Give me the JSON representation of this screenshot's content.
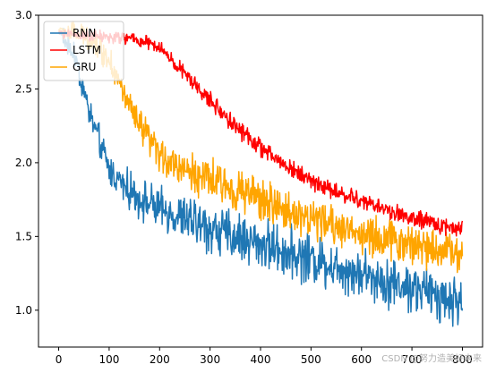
{
  "chart_data": {
    "type": "line",
    "title": "",
    "xlabel": "",
    "ylabel": "",
    "xlim": [
      -40,
      840
    ],
    "ylim": [
      0.75,
      3.0
    ],
    "x_ticks": [
      0,
      100,
      200,
      300,
      400,
      500,
      600,
      700,
      800
    ],
    "y_ticks": [
      1.0,
      1.5,
      2.0,
      2.5,
      3.0
    ],
    "x_tick_labels": [
      "0",
      "100",
      "200",
      "300",
      "400",
      "500",
      "600",
      "700",
      "800"
    ],
    "y_tick_labels": [
      "1.0",
      "1.5",
      "2.0",
      "2.5",
      "3.0"
    ],
    "grid": false,
    "legend_position": "upper-left",
    "series": [
      {
        "name": "RNN",
        "color": "#1f77b4",
        "trend_x": [
          0,
          30,
          60,
          100,
          150,
          200,
          250,
          300,
          350,
          400,
          450,
          500,
          550,
          600,
          650,
          700,
          750,
          800
        ],
        "trend_y": [
          2.88,
          2.75,
          2.35,
          1.95,
          1.78,
          1.68,
          1.62,
          1.55,
          1.5,
          1.45,
          1.4,
          1.35,
          1.3,
          1.25,
          1.2,
          1.15,
          1.1,
          1.05
        ],
        "noise_amplitude": 0.17
      },
      {
        "name": "LSTM",
        "color": "#ff0000",
        "trend_x": [
          0,
          100,
          150,
          200,
          250,
          300,
          350,
          400,
          450,
          500,
          550,
          600,
          650,
          700,
          750,
          800
        ],
        "trend_y": [
          2.88,
          2.85,
          2.84,
          2.78,
          2.6,
          2.42,
          2.25,
          2.1,
          1.98,
          1.88,
          1.8,
          1.74,
          1.68,
          1.62,
          1.58,
          1.55
        ],
        "noise_amplitude": 0.06
      },
      {
        "name": "GRU",
        "color": "#ffa500",
        "trend_x": [
          0,
          60,
          100,
          150,
          200,
          250,
          300,
          350,
          400,
          450,
          500,
          550,
          600,
          650,
          700,
          750,
          800
        ],
        "trend_y": [
          2.9,
          2.85,
          2.7,
          2.3,
          2.05,
          1.95,
          1.88,
          1.82,
          1.75,
          1.68,
          1.62,
          1.57,
          1.52,
          1.48,
          1.45,
          1.42,
          1.4
        ],
        "noise_amplitude": 0.14
      }
    ]
  },
  "watermark": "CSDN @努力造美好未来"
}
